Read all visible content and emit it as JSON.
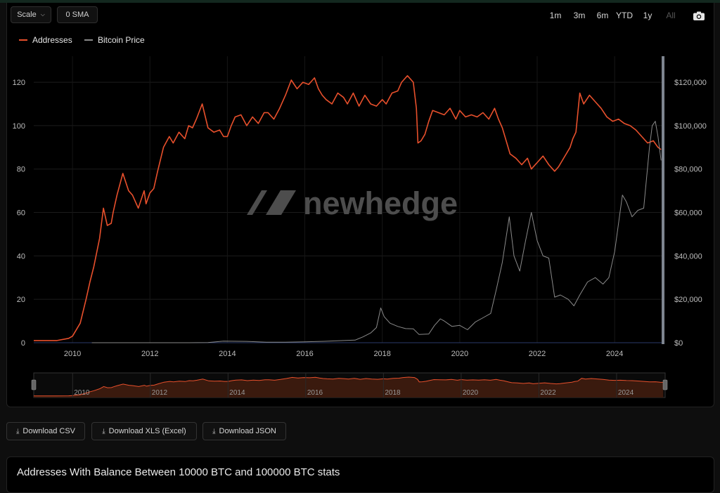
{
  "toolbar": {
    "scale_label": "Scale",
    "sma_label": "0 SMA",
    "ranges": [
      "1m",
      "3m",
      "6m",
      "YTD",
      "1y",
      "All"
    ],
    "active_range": "All"
  },
  "legend": [
    {
      "label": "Addresses",
      "color": "#e8502c"
    },
    {
      "label": "Bitcoin Price",
      "color": "#8a8a8a"
    }
  ],
  "watermark": "newhedge",
  "downloads": {
    "csv": "Download CSV",
    "xls": "Download XLS (Excel)",
    "json": "Download JSON"
  },
  "stats": {
    "title": "Addresses With Balance Between 10000 BTC and 100000 BTC stats"
  },
  "chart_data": {
    "type": "line",
    "x_ticks": [
      "2010",
      "2012",
      "2014",
      "2016",
      "2018",
      "2020",
      "2022",
      "2024"
    ],
    "x_range": [
      2009.0,
      2025.25
    ],
    "y_left_ticks": [
      "0",
      "20",
      "40",
      "60",
      "80",
      "100",
      "120"
    ],
    "y_left_range": [
      0,
      132
    ],
    "y_right_ticks": [
      "$0",
      "$20,000",
      "$40,000",
      "$60,000",
      "$80,000",
      "$100,000",
      "$120,000"
    ],
    "y_right_range": [
      0,
      132000
    ],
    "grid": true,
    "legend_position": "top-left",
    "series": [
      {
        "name": "Addresses",
        "axis": "left",
        "color": "#e8502c",
        "x": [
          2009.0,
          2009.3,
          2009.6,
          2009.9,
          2010.0,
          2010.2,
          2010.35,
          2010.45,
          2010.55,
          2010.7,
          2010.8,
          2010.9,
          2011.0,
          2011.05,
          2011.15,
          2011.3,
          2011.45,
          2011.55,
          2011.7,
          2011.85,
          2011.9,
          2012.0,
          2012.1,
          2012.2,
          2012.35,
          2012.5,
          2012.6,
          2012.75,
          2012.9,
          2013.0,
          2013.1,
          2013.2,
          2013.35,
          2013.5,
          2013.65,
          2013.8,
          2013.9,
          2014.0,
          2014.1,
          2014.2,
          2014.35,
          2014.5,
          2014.65,
          2014.8,
          2014.95,
          2015.05,
          2015.2,
          2015.35,
          2015.5,
          2015.65,
          2015.8,
          2015.95,
          2016.1,
          2016.25,
          2016.35,
          2016.45,
          2016.55,
          2016.7,
          2016.85,
          2017.0,
          2017.1,
          2017.25,
          2017.4,
          2017.55,
          2017.7,
          2017.85,
          2018.0,
          2018.1,
          2018.25,
          2018.4,
          2018.5,
          2018.65,
          2018.8,
          2018.88,
          2018.92,
          2019.0,
          2019.1,
          2019.2,
          2019.3,
          2019.45,
          2019.6,
          2019.75,
          2019.9,
          2020.0,
          2020.15,
          2020.3,
          2020.45,
          2020.6,
          2020.75,
          2020.9,
          2021.0,
          2021.1,
          2021.2,
          2021.3,
          2021.45,
          2021.6,
          2021.75,
          2021.85,
          2022.0,
          2022.15,
          2022.3,
          2022.45,
          2022.55,
          2022.65,
          2022.75,
          2022.85,
          2022.92,
          2023.0,
          2023.1,
          2023.2,
          2023.35,
          2023.5,
          2023.65,
          2023.8,
          2023.95,
          2024.1,
          2024.25,
          2024.4,
          2024.55,
          2024.7,
          2024.85,
          2025.0,
          2025.12,
          2025.2
        ],
        "y": [
          1,
          1,
          1,
          2,
          3,
          9,
          20,
          28,
          35,
          48,
          62,
          54,
          55,
          60,
          68,
          78,
          70,
          68,
          62,
          70,
          64,
          69,
          71,
          79,
          90,
          95,
          92,
          97,
          94,
          100,
          99,
          103,
          110,
          99,
          97,
          98,
          95,
          95,
          100,
          104,
          105,
          100,
          104,
          101,
          106,
          106,
          103,
          108,
          114,
          121,
          117,
          120,
          119,
          122,
          117,
          114,
          112,
          110,
          115,
          113,
          110,
          115,
          109,
          114,
          110,
          109,
          112,
          110,
          115,
          116,
          120,
          123,
          120,
          108,
          92,
          93,
          96,
          102,
          107,
          106,
          105,
          108,
          103,
          107,
          104,
          105,
          104,
          106,
          103,
          108,
          103,
          99,
          93,
          87,
          85,
          82,
          85,
          80,
          83,
          86,
          82,
          79,
          81,
          84,
          87,
          90,
          94,
          97,
          115,
          110,
          114,
          111,
          108,
          104,
          102,
          103,
          101,
          100,
          98,
          95,
          92,
          93,
          90,
          89
        ]
      },
      {
        "name": "Bitcoin Price",
        "axis": "right",
        "color": "#8a8a8a",
        "x": [
          2010.5,
          2011.0,
          2011.5,
          2012.0,
          2012.5,
          2013.0,
          2013.5,
          2013.9,
          2014.5,
          2015.0,
          2015.5,
          2016.0,
          2016.5,
          2017.0,
          2017.3,
          2017.5,
          2017.7,
          2017.85,
          2017.96,
          2018.05,
          2018.2,
          2018.4,
          2018.6,
          2018.8,
          2018.95,
          2019.2,
          2019.35,
          2019.5,
          2019.6,
          2019.8,
          2020.0,
          2020.2,
          2020.4,
          2020.6,
          2020.8,
          2020.95,
          2021.1,
          2021.28,
          2021.4,
          2021.55,
          2021.7,
          2021.85,
          2022.0,
          2022.15,
          2022.3,
          2022.45,
          2022.6,
          2022.8,
          2022.95,
          2023.1,
          2023.3,
          2023.5,
          2023.7,
          2023.85,
          2024.0,
          2024.2,
          2024.3,
          2024.45,
          2024.6,
          2024.75,
          2024.9,
          2024.97,
          2025.05,
          2025.12,
          2025.2
        ],
        "y": [
          0,
          1,
          10,
          5,
          7,
          13,
          100,
          700,
          600,
          250,
          260,
          430,
          650,
          1000,
          1200,
          2700,
          4500,
          7000,
          16000,
          12000,
          9000,
          7500,
          6500,
          6400,
          3800,
          4000,
          8000,
          11000,
          10000,
          7500,
          8000,
          6000,
          9500,
          11500,
          13500,
          25000,
          37000,
          58000,
          40000,
          33000,
          47000,
          60000,
          47000,
          40000,
          39000,
          21000,
          22000,
          20000,
          17000,
          22000,
          28000,
          30000,
          27000,
          30000,
          42000,
          68000,
          65000,
          58000,
          61000,
          62000,
          90000,
          100000,
          102000,
          95000,
          84000
        ]
      }
    ]
  }
}
